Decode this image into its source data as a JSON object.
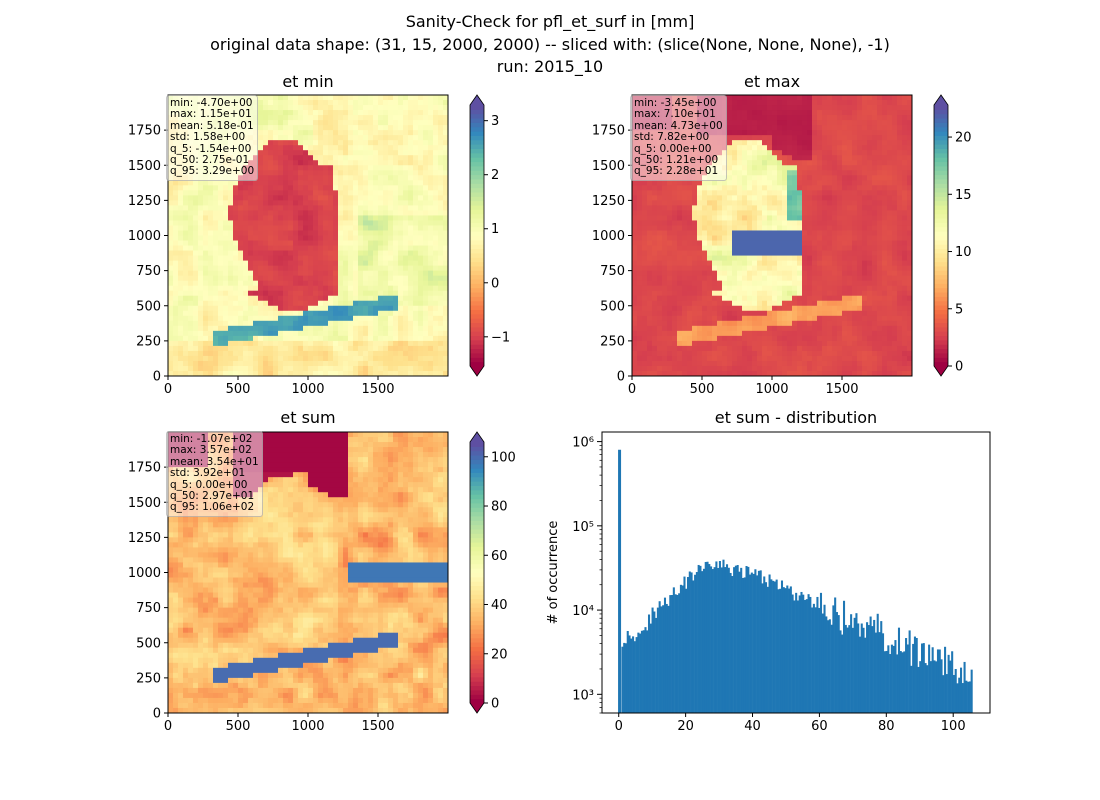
{
  "figure": {
    "title_lines": [
      "Sanity-Check for pfl_et_surf in [mm]",
      "original data shape: (31, 15, 2000, 2000) -- sliced with: (slice(None, None, None), -1)",
      "run: 2015_10"
    ]
  },
  "chart_data": [
    {
      "type": "heatmap",
      "title": "et min",
      "colormap": "Spectral",
      "xlim": [
        0,
        2000
      ],
      "ylim": [
        0,
        2000
      ],
      "xticks": [
        0,
        500,
        1000,
        1500
      ],
      "yticks": [
        0,
        250,
        500,
        750,
        1000,
        1250,
        1500,
        1750
      ],
      "colorbar": {
        "range": [
          -1.54,
          3.29
        ],
        "ticks": [
          -1,
          0,
          1,
          2,
          3
        ],
        "extend": "both"
      },
      "stats": [
        "min: -4.70e+00",
        "max: 1.15e+01",
        "mean: 5.18e-01",
        "std: 1.58e+00",
        "q_5: -1.54e+00",
        "q_50: 2.75e-01",
        "q_95: 3.29e+00"
      ]
    },
    {
      "type": "heatmap",
      "title": "et max",
      "colormap": "Spectral",
      "xlim": [
        0,
        2000
      ],
      "ylim": [
        0,
        2000
      ],
      "xticks": [
        0,
        500,
        1000,
        1500
      ],
      "yticks": [
        0,
        250,
        500,
        750,
        1000,
        1250,
        1500,
        1750
      ],
      "colorbar": {
        "range": [
          0,
          22.8
        ],
        "ticks": [
          0,
          5,
          10,
          15,
          20
        ],
        "extend": "both"
      },
      "stats": [
        "min: -3.45e+00",
        "max: 7.10e+01",
        "mean: 4.73e+00",
        "std: 7.82e+00",
        "q_5: 0.00e+00",
        "q_50: 1.21e+00",
        "q_95: 2.28e+01"
      ]
    },
    {
      "type": "heatmap",
      "title": "et sum",
      "colormap": "Spectral",
      "xlim": [
        0,
        2000
      ],
      "ylim": [
        0,
        2000
      ],
      "xticks": [
        0,
        500,
        1000,
        1500
      ],
      "yticks": [
        0,
        250,
        500,
        750,
        1000,
        1250,
        1500,
        1750
      ],
      "colorbar": {
        "range": [
          0,
          106
        ],
        "ticks": [
          0,
          20,
          40,
          60,
          80,
          100
        ],
        "extend": "both"
      },
      "stats": [
        "min: -1.07e+02",
        "max: 3.57e+02",
        "mean: 3.54e+01",
        "std: 3.92e+01",
        "q_5: 0.00e+00",
        "q_50: 2.97e+01",
        "q_95: 1.06e+02"
      ]
    },
    {
      "type": "bar",
      "title": "et sum - distribution",
      "ylabel": "# of occurrence",
      "yscale": "log",
      "xlim": [
        -5,
        111
      ],
      "ylim": [
        600,
        1300000
      ],
      "xticks": [
        0,
        20,
        40,
        60,
        80,
        100
      ],
      "yticks": [
        {
          "value": 1000,
          "label": "10³"
        },
        {
          "value": 10000,
          "label": "10⁴"
        },
        {
          "value": 100000,
          "label": "10⁵"
        },
        {
          "value": 1000000,
          "label": "10⁶"
        }
      ],
      "color": "#1f77b4",
      "spike": {
        "x": 0,
        "value": 800000
      },
      "x": [
        1,
        3,
        5,
        8,
        10,
        12,
        15,
        18,
        20,
        22,
        25,
        27,
        30,
        33,
        35,
        38,
        40,
        43,
        45,
        48,
        50,
        53,
        55,
        58,
        60,
        63,
        65,
        68,
        70,
        73,
        75,
        78,
        80,
        83,
        85,
        88,
        90,
        93,
        95,
        98,
        100,
        102,
        105
      ],
      "values": [
        4500,
        5500,
        5000,
        6500,
        9000,
        11000,
        14000,
        18000,
        22000,
        25000,
        32000,
        36000,
        33000,
        31000,
        30000,
        28000,
        27000,
        24000,
        22000,
        19000,
        17000,
        15000,
        14000,
        12500,
        11500,
        10000,
        9000,
        8000,
        7200,
        6500,
        6000,
        5300,
        4800,
        4300,
        3800,
        3400,
        3100,
        2800,
        2500,
        2200,
        2000,
        1800,
        1600
      ]
    }
  ]
}
